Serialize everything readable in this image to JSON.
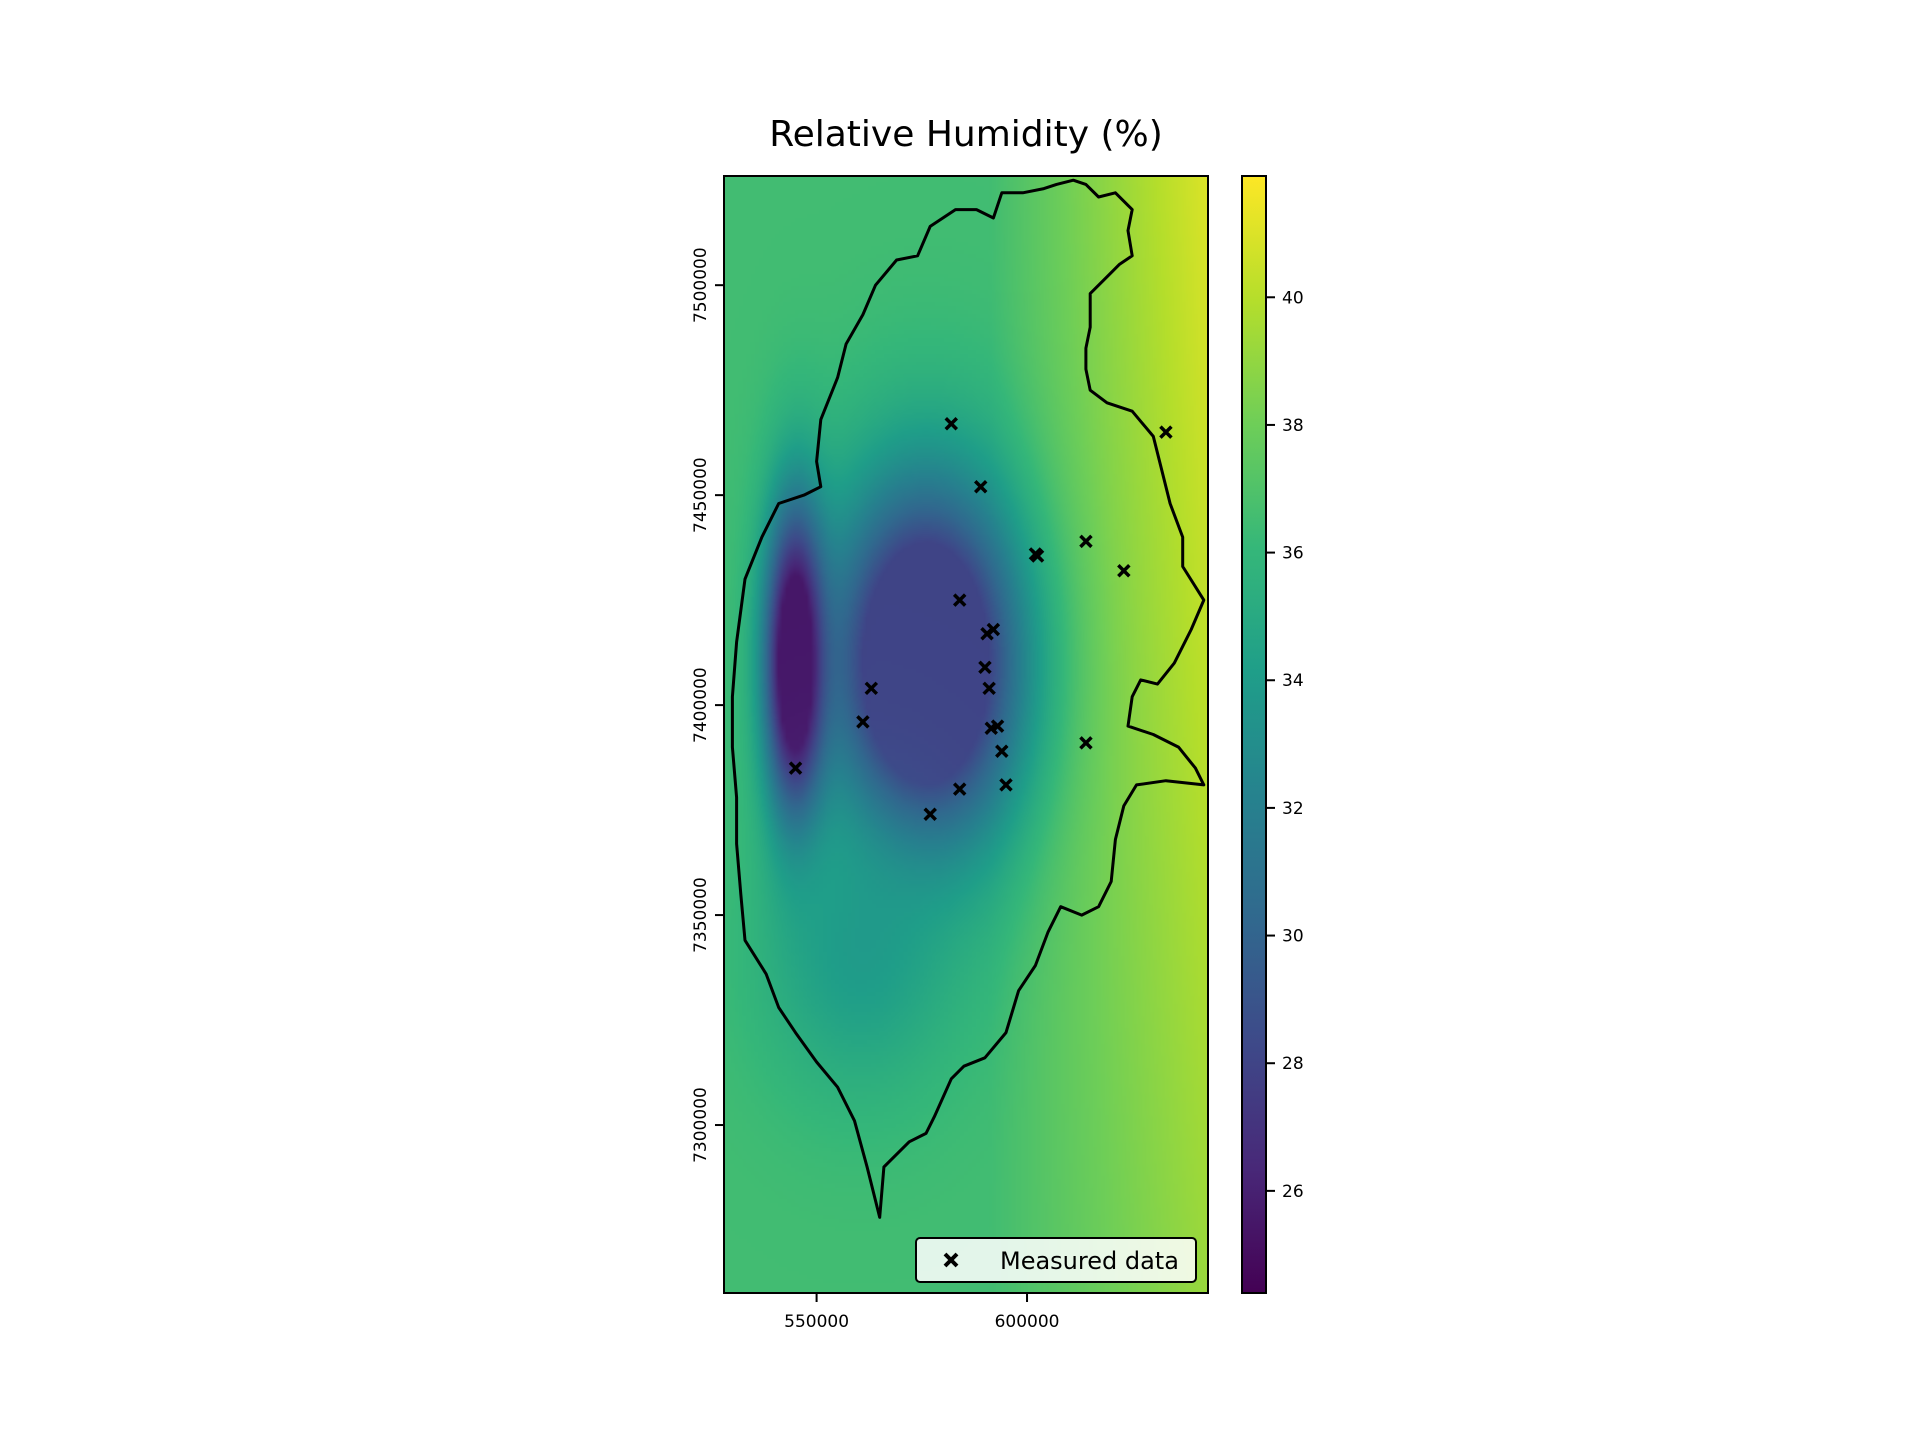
{
  "chart_data": {
    "type": "heatmap",
    "title": "Relative Humidity (%)",
    "xlabel": "",
    "ylabel": "",
    "xlim": [
      528000,
      643000
    ],
    "ylim": [
      7260000,
      7526000
    ],
    "x_ticks": [
      550000,
      600000
    ],
    "x_tick_labels": [
      "550000",
      "600000"
    ],
    "y_ticks": [
      7300000,
      7350000,
      7400000,
      7450000,
      7500000
    ],
    "y_tick_labels": [
      "7300000",
      "7350000",
      "7400000",
      "7450000",
      "7500000"
    ],
    "colormap": "viridis",
    "colorbar": {
      "range": [
        24.4,
        41.9
      ],
      "ticks": [
        26,
        28,
        30,
        32,
        34,
        36,
        38,
        40
      ],
      "tick_labels": [
        "26",
        "28",
        "30",
        "32",
        "34",
        "36",
        "38",
        "40"
      ]
    },
    "field_features": [
      {
        "kind": "background",
        "value": 36.5
      },
      {
        "kind": "gradient-east",
        "value": 41.0
      },
      {
        "kind": "low-core",
        "cx": 576000,
        "cy": 7410000,
        "value": 28.0
      },
      {
        "kind": "low-west-strip",
        "cx": 545000,
        "cy": 7410000,
        "value": 25.5
      },
      {
        "kind": "moderate-south",
        "cx": 560000,
        "cy": 7340000,
        "value": 33.0
      }
    ],
    "boundary": [
      [
        565000,
        7278000
      ],
      [
        562000,
        7290000
      ],
      [
        559000,
        7301000
      ],
      [
        555000,
        7309000
      ],
      [
        550000,
        7315000
      ],
      [
        545000,
        7322000
      ],
      [
        541000,
        7328000
      ],
      [
        538000,
        7336000
      ],
      [
        533000,
        7344000
      ],
      [
        532000,
        7355000
      ],
      [
        531000,
        7367000
      ],
      [
        531000,
        7378000
      ],
      [
        530000,
        7390000
      ],
      [
        530000,
        7402000
      ],
      [
        531000,
        7415000
      ],
      [
        533000,
        7430000
      ],
      [
        537000,
        7440000
      ],
      [
        541000,
        7448000
      ],
      [
        547000,
        7450000
      ],
      [
        551000,
        7452000
      ],
      [
        550000,
        7458000
      ],
      [
        551000,
        7468000
      ],
      [
        555000,
        7478000
      ],
      [
        557000,
        7486000
      ],
      [
        561000,
        7493000
      ],
      [
        564000,
        7500000
      ],
      [
        569000,
        7506000
      ],
      [
        574000,
        7507000
      ],
      [
        577000,
        7514000
      ],
      [
        583000,
        7518000
      ],
      [
        588000,
        7518000
      ],
      [
        592000,
        7516000
      ],
      [
        594000,
        7522000
      ],
      [
        599000,
        7522000
      ],
      [
        604000,
        7523000
      ],
      [
        607000,
        7524000
      ],
      [
        611000,
        7525000
      ],
      [
        614000,
        7524000
      ],
      [
        617000,
        7521000
      ],
      [
        621000,
        7522000
      ],
      [
        625000,
        7518000
      ],
      [
        624000,
        7513000
      ],
      [
        625000,
        7507000
      ],
      [
        622000,
        7505000
      ],
      [
        619000,
        7502000
      ],
      [
        615000,
        7498000
      ],
      [
        615000,
        7490000
      ],
      [
        614000,
        7485000
      ],
      [
        614000,
        7480000
      ],
      [
        615000,
        7475000
      ],
      [
        619000,
        7472000
      ],
      [
        625000,
        7470000
      ],
      [
        630000,
        7464000
      ],
      [
        632000,
        7456000
      ],
      [
        634000,
        7448000
      ],
      [
        637000,
        7440000
      ],
      [
        637000,
        7433000
      ],
      [
        642000,
        7425000
      ],
      [
        639000,
        7418000
      ],
      [
        635000,
        7410000
      ],
      [
        631000,
        7405000
      ],
      [
        627000,
        7406000
      ],
      [
        625000,
        7402000
      ],
      [
        624000,
        7395000
      ],
      [
        630000,
        7393000
      ],
      [
        636000,
        7390000
      ],
      [
        640000,
        7385000
      ],
      [
        642000,
        7381000
      ],
      [
        633000,
        7382000
      ],
      [
        626000,
        7381000
      ],
      [
        623000,
        7376000
      ],
      [
        621000,
        7368000
      ],
      [
        620000,
        7358000
      ],
      [
        617000,
        7352000
      ],
      [
        613000,
        7350000
      ],
      [
        608000,
        7352000
      ],
      [
        605000,
        7346000
      ],
      [
        602000,
        7338000
      ],
      [
        598000,
        7332000
      ],
      [
        595000,
        7322000
      ],
      [
        590000,
        7316000
      ],
      [
        585000,
        7314000
      ],
      [
        582000,
        7311000
      ],
      [
        578000,
        7302000
      ],
      [
        576000,
        7298000
      ],
      [
        572000,
        7296000
      ],
      [
        566000,
        7290000
      ],
      [
        565000,
        7278000
      ]
    ],
    "series": [
      {
        "name": "Measured data",
        "marker": "x",
        "points": [
          [
            582000,
            7467000
          ],
          [
            589000,
            7452000
          ],
          [
            633000,
            7465000
          ],
          [
            602000,
            7436000
          ],
          [
            602500,
            7435500
          ],
          [
            614000,
            7439000
          ],
          [
            623000,
            7432000
          ],
          [
            584000,
            7425000
          ],
          [
            592000,
            7418000
          ],
          [
            590500,
            7417000
          ],
          [
            563000,
            7404000
          ],
          [
            590000,
            7409000
          ],
          [
            591000,
            7404000
          ],
          [
            561000,
            7396000
          ],
          [
            593000,
            7395000
          ],
          [
            591500,
            7394500
          ],
          [
            594000,
            7389000
          ],
          [
            614000,
            7391000
          ],
          [
            545000,
            7385000
          ],
          [
            595000,
            7381000
          ],
          [
            584000,
            7380000
          ],
          [
            577000,
            7374000
          ]
        ]
      }
    ],
    "legend": {
      "position": "lower-right",
      "entries": [
        "Measured data"
      ]
    }
  }
}
